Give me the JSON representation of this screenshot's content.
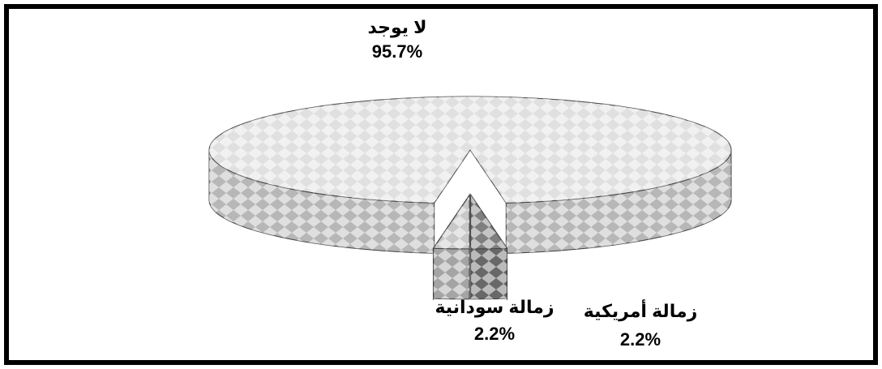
{
  "chart_data": {
    "type": "pie",
    "categories": [
      "لا يوجد",
      "زمالة أمريكية",
      "زمالة سودانية"
    ],
    "values": [
      95.7,
      2.2,
      2.2
    ],
    "value_labels": [
      "95.7%",
      "2.2%",
      "2.2%"
    ],
    "colors": [
      "#e0e0e0",
      "#7f7f7f",
      "#c8c8c8"
    ]
  }
}
